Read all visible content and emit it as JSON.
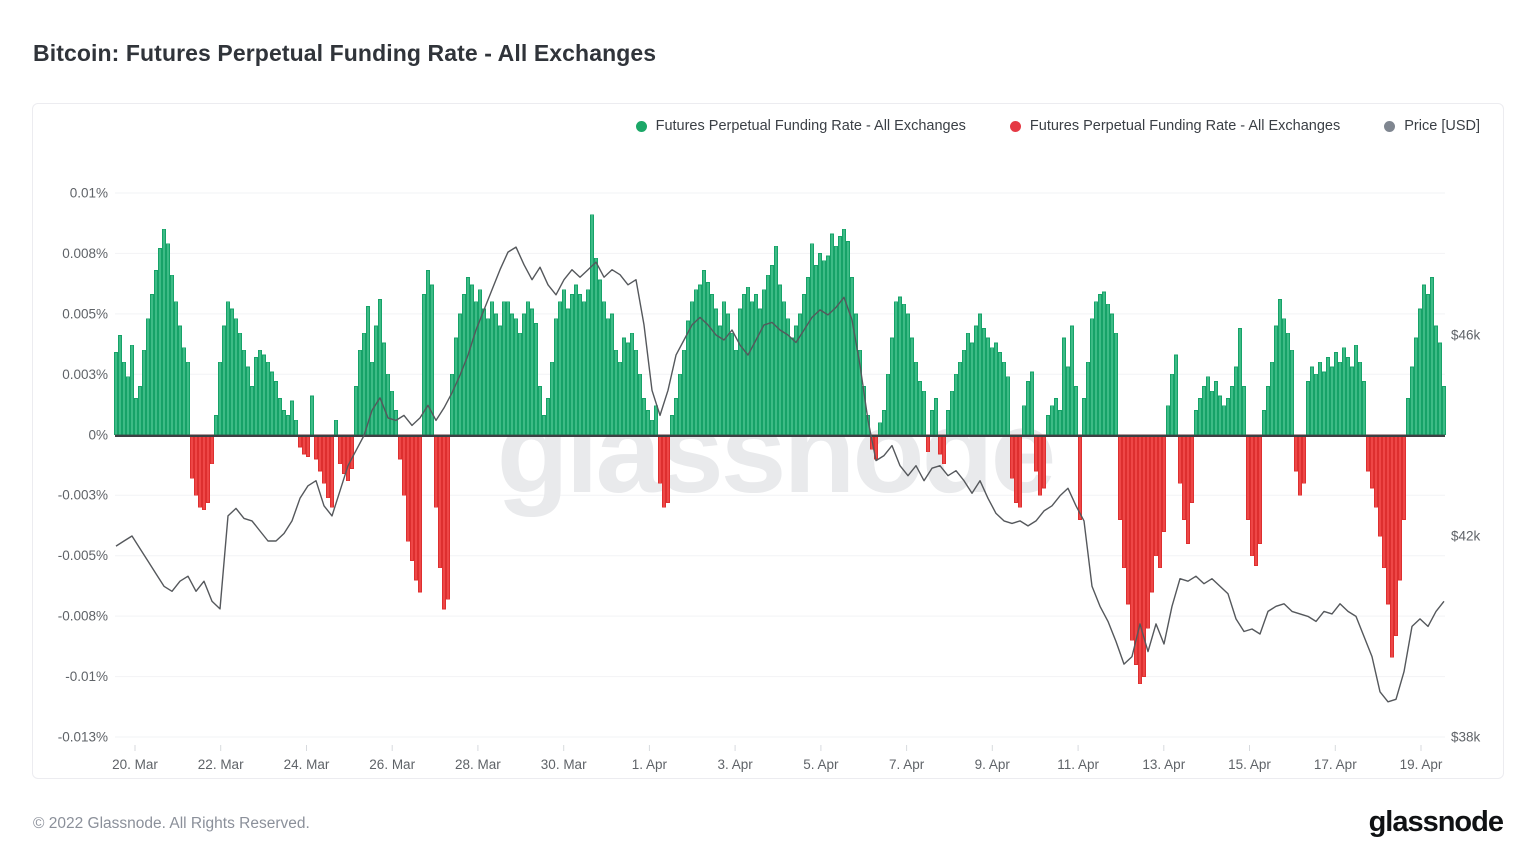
{
  "header": {
    "title": "Bitcoin: Futures Perpetual Funding Rate - All Exchanges"
  },
  "legend": {
    "items": [
      {
        "label": "Futures Perpetual Funding Rate - All Exchanges",
        "marker": "green-dot",
        "color": "#1ba767"
      },
      {
        "label": "Futures Perpetual Funding Rate - All Exchanges",
        "marker": "red-dot",
        "color": "#e53944"
      },
      {
        "label": "Price [USD]",
        "marker": "gray-dot",
        "color": "#7f8690"
      }
    ]
  },
  "watermark": "glassnode",
  "footer": {
    "copyright": "© 2022 Glassnode. All Rights Reserved.",
    "brand": "glassnode"
  },
  "colors": {
    "bar_positive_fill": "#3dbb86",
    "bar_positive_stroke": "#16a268",
    "bar_negative_fill": "#ee4747",
    "bar_negative_stroke": "#dd2f2f",
    "price_line": "#55585c",
    "gridline": "#f2f3f5",
    "zero_line": "#3c4043",
    "axis_text": "#5f6368",
    "tick_mark": "#d7dade",
    "watermark": "#e9eaec"
  },
  "chart_data": {
    "type": "bar",
    "title": "Bitcoin: Futures Perpetual Funding Rate - All Exchanges",
    "grid": "horizontal-only",
    "legend_position": "top-right",
    "y_axis_left": {
      "name": "Funding rate",
      "unit": "%",
      "tick_labels": [
        "0.01%",
        "0.008%",
        "0.005%",
        "0.003%",
        "0%",
        "-0.003%",
        "-0.005%",
        "-0.008%",
        "-0.01%",
        "-0.013%"
      ],
      "tick_values_e4": [
        100,
        75,
        50,
        25,
        0,
        -25,
        -50,
        -75,
        -100,
        -125
      ],
      "range_e4": [
        -125,
        100
      ]
    },
    "y_axis_right": {
      "name": "Price [USD]",
      "unit": "USD",
      "tick_labels": [
        "$46k",
        "$42k",
        "$38k"
      ],
      "tick_values_k": [
        46,
        42,
        38
      ]
    },
    "x_axis": {
      "tick_labels": [
        "20. Mar",
        "22. Mar",
        "24. Mar",
        "26. Mar",
        "28. Mar",
        "30. Mar",
        "1. Apr",
        "3. Apr",
        "5. Apr",
        "7. Apr",
        "9. Apr",
        "11. Apr",
        "13. Apr",
        "15. Apr",
        "17. Apr",
        "19. Apr"
      ],
      "span": "19 Mar 2022 - 20 Apr 2022"
    },
    "series": [
      {
        "name": "Futures Perpetual Funding Rate - All Exchanges (positive)",
        "type": "bar",
        "color": "#3dbb86"
      },
      {
        "name": "Futures Perpetual Funding Rate - All Exchanges (negative)",
        "type": "bar",
        "color": "#ee4747"
      },
      {
        "name": "Price [USD]",
        "type": "line",
        "color": "#55585c"
      }
    ],
    "funding_rate_bars_e4pct": [
      34,
      41,
      30,
      24,
      37,
      15,
      20,
      35,
      48,
      58,
      68,
      77,
      85,
      79,
      66,
      55,
      45,
      36,
      30,
      -18,
      -25,
      -30,
      -31,
      -28,
      -12,
      8,
      30,
      45,
      55,
      52,
      48,
      42,
      35,
      28,
      20,
      32,
      35,
      33,
      30,
      26,
      22,
      15,
      10,
      8,
      14,
      6,
      -5,
      -8,
      -9,
      16,
      -10,
      -15,
      -20,
      -26,
      -30,
      6,
      -12,
      -16,
      -19,
      -14,
      20,
      35,
      42,
      53,
      30,
      45,
      56,
      38,
      25,
      18,
      10,
      -10,
      -25,
      -44,
      -52,
      -60,
      -65,
      58,
      68,
      62,
      -30,
      -55,
      -72,
      -68,
      25,
      40,
      50,
      58,
      65,
      62,
      55,
      60,
      52,
      48,
      55,
      50,
      45,
      55,
      55,
      50,
      48,
      42,
      50,
      55,
      52,
      46,
      20,
      8,
      15,
      30,
      48,
      55,
      60,
      52,
      58,
      62,
      58,
      55,
      60,
      91,
      73,
      64,
      55,
      48,
      50,
      35,
      30,
      40,
      38,
      42,
      35,
      25,
      15,
      10,
      6,
      12,
      -20,
      -30,
      -28,
      8,
      15,
      25,
      35,
      47,
      55,
      60,
      62,
      68,
      63,
      58,
      52,
      45,
      55,
      50,
      42,
      35,
      52,
      58,
      61,
      55,
      58,
      52,
      60,
      66,
      70,
      78,
      62,
      55,
      48,
      40,
      45,
      50,
      58,
      65,
      79,
      70,
      75,
      72,
      74,
      83,
      78,
      82,
      85,
      80,
      65,
      50,
      35,
      20,
      8,
      -6,
      -10,
      5,
      10,
      25,
      40,
      55,
      57,
      54,
      50,
      40,
      30,
      22,
      18,
      -7,
      10,
      15,
      -8,
      -12,
      10,
      18,
      25,
      30,
      35,
      42,
      38,
      45,
      50,
      44,
      40,
      36,
      38,
      34,
      30,
      24,
      -18,
      -28,
      -30,
      12,
      22,
      26,
      -15,
      -25,
      -22,
      8,
      12,
      15,
      10,
      40,
      28,
      45,
      20,
      -35,
      15,
      30,
      48,
      55,
      58,
      59,
      54,
      50,
      42,
      -35,
      -55,
      -70,
      -85,
      -95,
      -103,
      -100,
      -80,
      -65,
      -50,
      -55,
      -40,
      12,
      25,
      33,
      -20,
      -35,
      -45,
      -28,
      10,
      15,
      20,
      24,
      18,
      22,
      16,
      12,
      15,
      20,
      28,
      44,
      20,
      -35,
      -50,
      -54,
      -45,
      10,
      20,
      30,
      45,
      56,
      48,
      42,
      35,
      -15,
      -25,
      -20,
      22,
      28,
      25,
      30,
      26,
      32,
      28,
      34,
      30,
      36,
      32,
      28,
      37,
      30,
      22,
      -15,
      -22,
      -30,
      -42,
      -55,
      -70,
      -92,
      -83,
      -60,
      -35,
      15,
      28,
      40,
      52,
      62,
      58,
      65,
      45,
      38,
      20
    ],
    "price_usd_k": [
      41.8,
      41.9,
      42.0,
      41.75,
      41.5,
      41.25,
      41.0,
      40.9,
      41.1,
      41.2,
      40.9,
      41.1,
      40.7,
      40.55,
      42.4,
      42.55,
      42.35,
      42.3,
      42.1,
      41.9,
      41.9,
      42.05,
      42.3,
      42.75,
      43.0,
      43.1,
      42.6,
      42.4,
      42.9,
      43.4,
      43.7,
      44.0,
      44.5,
      44.75,
      44.35,
      44.3,
      44.4,
      44.2,
      44.35,
      44.6,
      44.3,
      44.55,
      44.85,
      45.2,
      45.6,
      46.1,
      46.5,
      46.9,
      47.3,
      47.65,
      47.75,
      47.4,
      47.1,
      47.35,
      47.0,
      46.8,
      47.1,
      47.3,
      47.15,
      47.3,
      47.45,
      47.15,
      47.3,
      47.2,
      47.0,
      47.1,
      46.2,
      44.9,
      44.4,
      44.9,
      45.6,
      45.9,
      46.2,
      46.35,
      46.2,
      46.0,
      45.9,
      46.1,
      45.8,
      45.6,
      45.9,
      46.2,
      46.25,
      46.1,
      46.0,
      45.85,
      46.1,
      46.35,
      46.5,
      46.4,
      46.55,
      46.75,
      46.3,
      45.4,
      44.3,
      43.5,
      43.6,
      43.8,
      43.4,
      43.2,
      43.4,
      43.1,
      43.35,
      43.4,
      43.2,
      43.3,
      43.1,
      42.85,
      43.1,
      42.75,
      42.45,
      42.3,
      42.25,
      42.3,
      42.2,
      42.3,
      42.5,
      42.6,
      42.8,
      42.95,
      42.6,
      42.3,
      41.0,
      40.6,
      40.3,
      39.9,
      39.45,
      39.6,
      40.25,
      39.7,
      40.25,
      39.85,
      40.6,
      41.15,
      41.1,
      41.2,
      41.05,
      41.15,
      41.0,
      40.85,
      40.35,
      40.1,
      40.15,
      40.05,
      40.5,
      40.6,
      40.65,
      40.5,
      40.45,
      40.4,
      40.3,
      40.5,
      40.45,
      40.65,
      40.5,
      40.4,
      40.0,
      39.6,
      38.9,
      38.7,
      38.75,
      39.3,
      40.2,
      40.35,
      40.2,
      40.5,
      40.7
    ]
  }
}
